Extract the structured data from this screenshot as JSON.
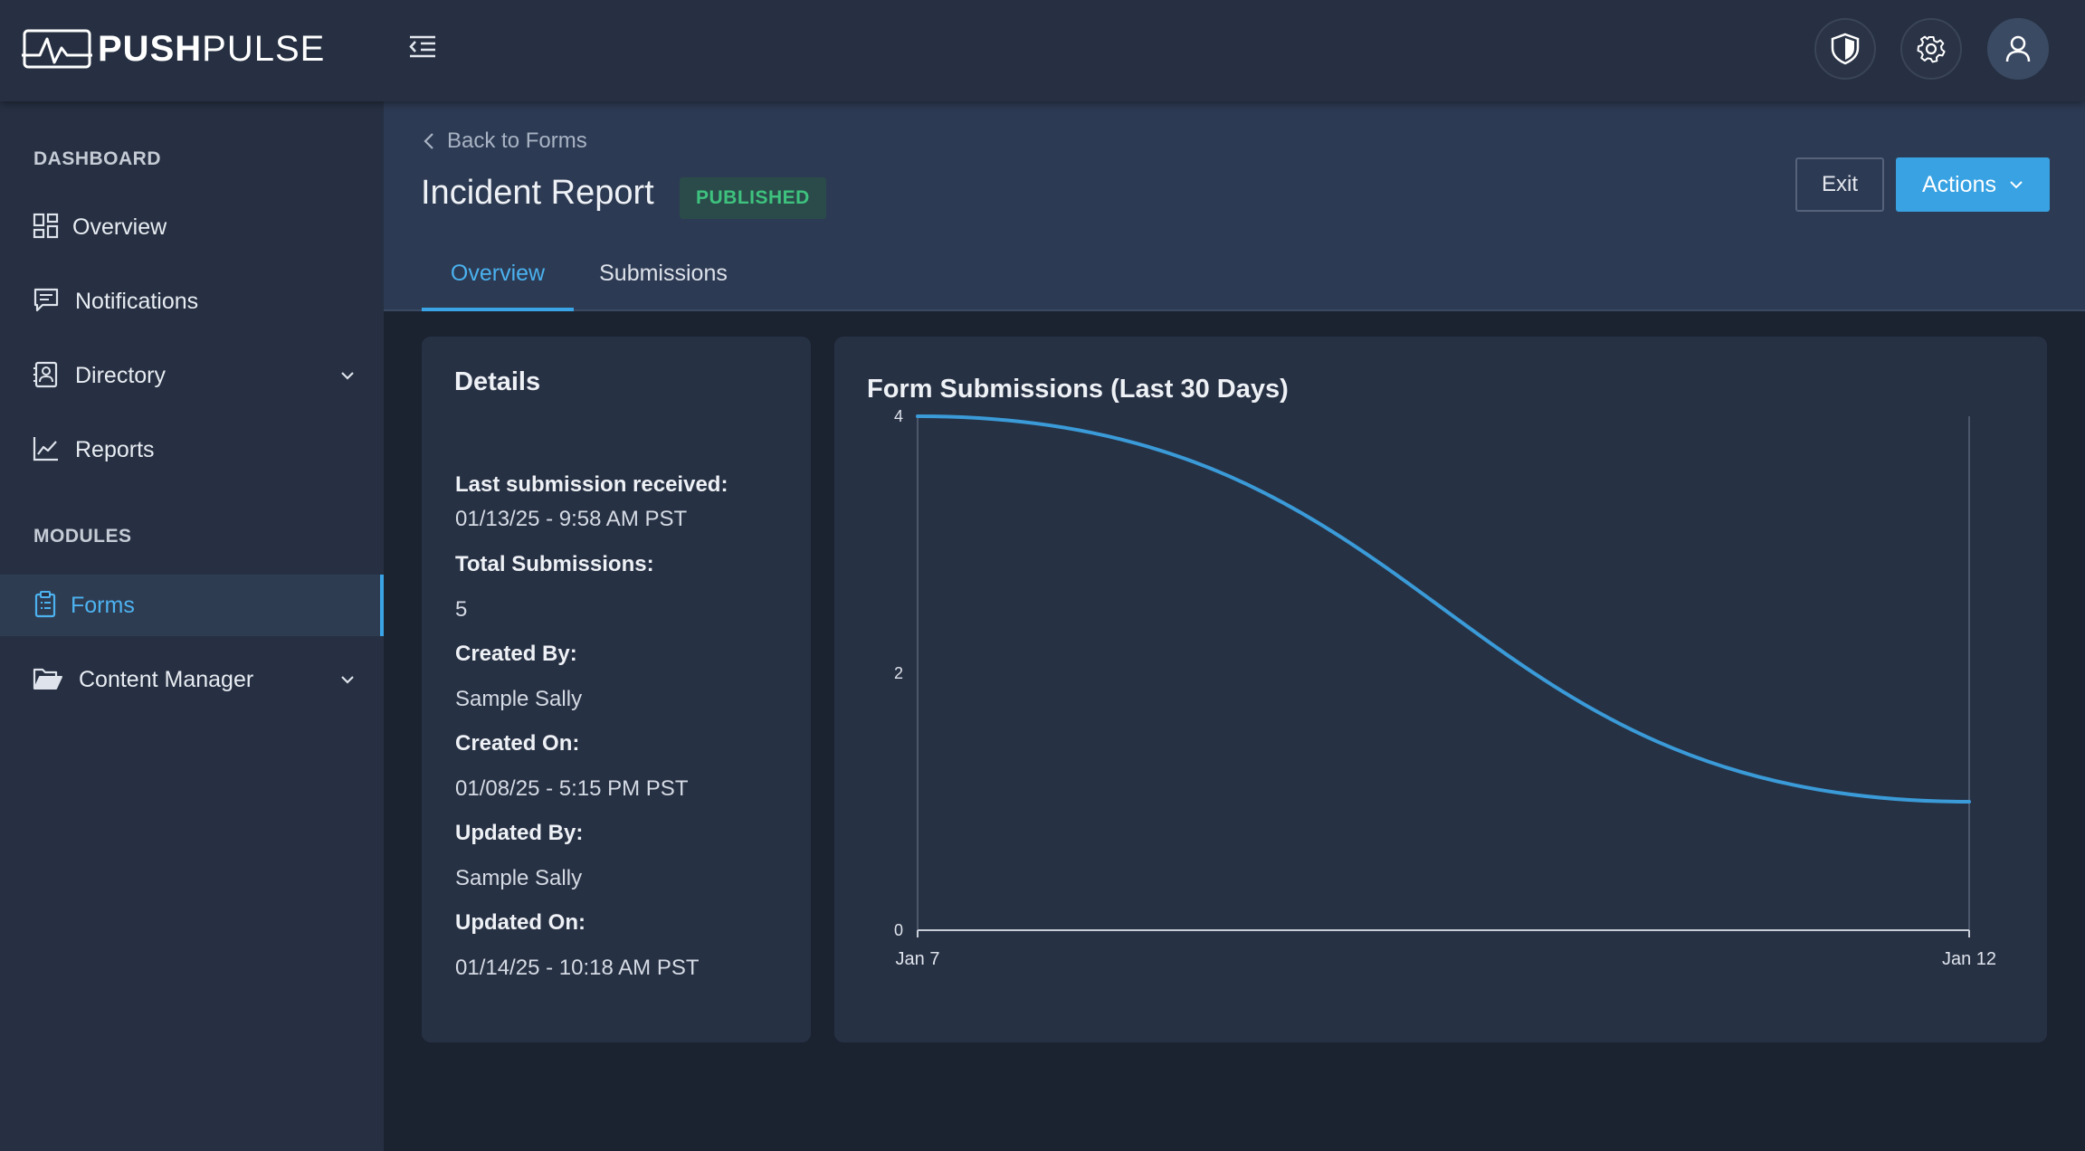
{
  "app": {
    "brand_bold": "PUSH",
    "brand_light": "PULSE"
  },
  "topbar": {
    "icons": [
      "menu-collapse-icon",
      "shield-icon",
      "gear-icon",
      "user-icon"
    ]
  },
  "sidebar": {
    "sections": [
      {
        "label": "DASHBOARD",
        "items": [
          {
            "label": "Overview",
            "icon": "grid-icon"
          },
          {
            "label": "Notifications",
            "icon": "message-icon"
          },
          {
            "label": "Directory",
            "icon": "contact-card-icon",
            "expandable": true
          },
          {
            "label": "Reports",
            "icon": "line-chart-icon"
          }
        ]
      },
      {
        "label": "MODULES",
        "items": [
          {
            "label": "Forms",
            "icon": "clipboard-icon",
            "active": true
          },
          {
            "label": "Content Manager",
            "icon": "folder-open-icon",
            "expandable": true
          }
        ]
      }
    ]
  },
  "header": {
    "back_label": "Back to Forms",
    "title": "Incident Report",
    "status": "PUBLISHED",
    "exit_label": "Exit",
    "actions_label": "Actions",
    "tabs": [
      {
        "label": "Overview",
        "active": true
      },
      {
        "label": "Submissions",
        "active": false
      }
    ]
  },
  "details": {
    "title": "Details",
    "fields": [
      {
        "label": "Last submission received",
        "value": "01/13/25 - 9:58 AM PST"
      },
      {
        "label": "Total Submissions",
        "value": "5"
      },
      {
        "label": "Created By",
        "value": "Sample Sally"
      },
      {
        "label": "Created On",
        "value": "01/08/25 - 5:15 PM PST"
      },
      {
        "label": "Updated By",
        "value": "Sample Sally"
      },
      {
        "label": "Updated On",
        "value": "01/14/25 - 10:18 AM PST"
      }
    ]
  },
  "colors": {
    "accent": "#38a2e3",
    "published": "#3ec27e",
    "line": "#3a9bd8"
  },
  "chart_data": {
    "type": "line",
    "title": "Form Submissions (Last 30 Days)",
    "x": [
      "Jan 7",
      "Jan 12"
    ],
    "series": [
      {
        "values": [
          4,
          1
        ]
      }
    ],
    "yticks": [
      0,
      2,
      4
    ],
    "ylim": [
      0,
      4
    ],
    "grid": false,
    "curve": "smooth"
  }
}
